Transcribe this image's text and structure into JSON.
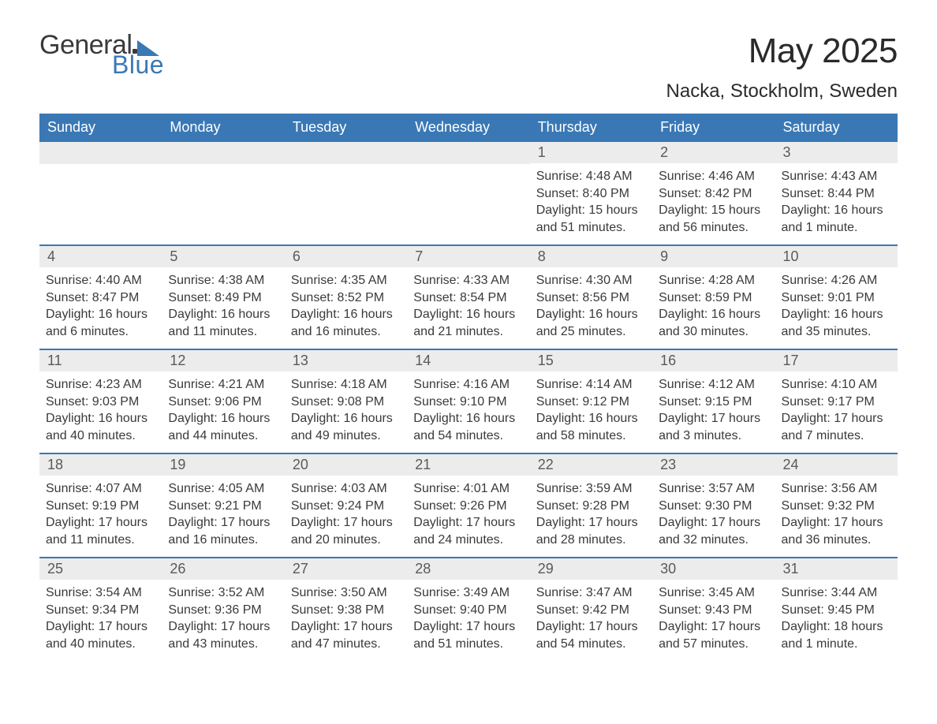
{
  "brand": {
    "word1": "General",
    "word2": "Blue",
    "accent_color": "#3a78b5",
    "text_color": "#3a3a3a"
  },
  "title": "May 2025",
  "location": "Nacka, Stockholm, Sweden",
  "colors": {
    "header_bg": "#3a78b5",
    "header_text": "#ffffff",
    "daynum_bg": "#ececec",
    "body_text": "#3a3a3a",
    "divider": "#3a78b5",
    "page_bg": "#ffffff"
  },
  "weekdays": [
    "Sunday",
    "Monday",
    "Tuesday",
    "Wednesday",
    "Thursday",
    "Friday",
    "Saturday"
  ],
  "weeks": [
    [
      {
        "blank": true
      },
      {
        "blank": true
      },
      {
        "blank": true
      },
      {
        "blank": true
      },
      {
        "n": "1",
        "sunrise": "Sunrise: 4:48 AM",
        "sunset": "Sunset: 8:40 PM",
        "d1": "Daylight: 15 hours",
        "d2": "and 51 minutes."
      },
      {
        "n": "2",
        "sunrise": "Sunrise: 4:46 AM",
        "sunset": "Sunset: 8:42 PM",
        "d1": "Daylight: 15 hours",
        "d2": "and 56 minutes."
      },
      {
        "n": "3",
        "sunrise": "Sunrise: 4:43 AM",
        "sunset": "Sunset: 8:44 PM",
        "d1": "Daylight: 16 hours",
        "d2": "and 1 minute."
      }
    ],
    [
      {
        "n": "4",
        "sunrise": "Sunrise: 4:40 AM",
        "sunset": "Sunset: 8:47 PM",
        "d1": "Daylight: 16 hours",
        "d2": "and 6 minutes."
      },
      {
        "n": "5",
        "sunrise": "Sunrise: 4:38 AM",
        "sunset": "Sunset: 8:49 PM",
        "d1": "Daylight: 16 hours",
        "d2": "and 11 minutes."
      },
      {
        "n": "6",
        "sunrise": "Sunrise: 4:35 AM",
        "sunset": "Sunset: 8:52 PM",
        "d1": "Daylight: 16 hours",
        "d2": "and 16 minutes."
      },
      {
        "n": "7",
        "sunrise": "Sunrise: 4:33 AM",
        "sunset": "Sunset: 8:54 PM",
        "d1": "Daylight: 16 hours",
        "d2": "and 21 minutes."
      },
      {
        "n": "8",
        "sunrise": "Sunrise: 4:30 AM",
        "sunset": "Sunset: 8:56 PM",
        "d1": "Daylight: 16 hours",
        "d2": "and 25 minutes."
      },
      {
        "n": "9",
        "sunrise": "Sunrise: 4:28 AM",
        "sunset": "Sunset: 8:59 PM",
        "d1": "Daylight: 16 hours",
        "d2": "and 30 minutes."
      },
      {
        "n": "10",
        "sunrise": "Sunrise: 4:26 AM",
        "sunset": "Sunset: 9:01 PM",
        "d1": "Daylight: 16 hours",
        "d2": "and 35 minutes."
      }
    ],
    [
      {
        "n": "11",
        "sunrise": "Sunrise: 4:23 AM",
        "sunset": "Sunset: 9:03 PM",
        "d1": "Daylight: 16 hours",
        "d2": "and 40 minutes."
      },
      {
        "n": "12",
        "sunrise": "Sunrise: 4:21 AM",
        "sunset": "Sunset: 9:06 PM",
        "d1": "Daylight: 16 hours",
        "d2": "and 44 minutes."
      },
      {
        "n": "13",
        "sunrise": "Sunrise: 4:18 AM",
        "sunset": "Sunset: 9:08 PM",
        "d1": "Daylight: 16 hours",
        "d2": "and 49 minutes."
      },
      {
        "n": "14",
        "sunrise": "Sunrise: 4:16 AM",
        "sunset": "Sunset: 9:10 PM",
        "d1": "Daylight: 16 hours",
        "d2": "and 54 minutes."
      },
      {
        "n": "15",
        "sunrise": "Sunrise: 4:14 AM",
        "sunset": "Sunset: 9:12 PM",
        "d1": "Daylight: 16 hours",
        "d2": "and 58 minutes."
      },
      {
        "n": "16",
        "sunrise": "Sunrise: 4:12 AM",
        "sunset": "Sunset: 9:15 PM",
        "d1": "Daylight: 17 hours",
        "d2": "and 3 minutes."
      },
      {
        "n": "17",
        "sunrise": "Sunrise: 4:10 AM",
        "sunset": "Sunset: 9:17 PM",
        "d1": "Daylight: 17 hours",
        "d2": "and 7 minutes."
      }
    ],
    [
      {
        "n": "18",
        "sunrise": "Sunrise: 4:07 AM",
        "sunset": "Sunset: 9:19 PM",
        "d1": "Daylight: 17 hours",
        "d2": "and 11 minutes."
      },
      {
        "n": "19",
        "sunrise": "Sunrise: 4:05 AM",
        "sunset": "Sunset: 9:21 PM",
        "d1": "Daylight: 17 hours",
        "d2": "and 16 minutes."
      },
      {
        "n": "20",
        "sunrise": "Sunrise: 4:03 AM",
        "sunset": "Sunset: 9:24 PM",
        "d1": "Daylight: 17 hours",
        "d2": "and 20 minutes."
      },
      {
        "n": "21",
        "sunrise": "Sunrise: 4:01 AM",
        "sunset": "Sunset: 9:26 PM",
        "d1": "Daylight: 17 hours",
        "d2": "and 24 minutes."
      },
      {
        "n": "22",
        "sunrise": "Sunrise: 3:59 AM",
        "sunset": "Sunset: 9:28 PM",
        "d1": "Daylight: 17 hours",
        "d2": "and 28 minutes."
      },
      {
        "n": "23",
        "sunrise": "Sunrise: 3:57 AM",
        "sunset": "Sunset: 9:30 PM",
        "d1": "Daylight: 17 hours",
        "d2": "and 32 minutes."
      },
      {
        "n": "24",
        "sunrise": "Sunrise: 3:56 AM",
        "sunset": "Sunset: 9:32 PM",
        "d1": "Daylight: 17 hours",
        "d2": "and 36 minutes."
      }
    ],
    [
      {
        "n": "25",
        "sunrise": "Sunrise: 3:54 AM",
        "sunset": "Sunset: 9:34 PM",
        "d1": "Daylight: 17 hours",
        "d2": "and 40 minutes."
      },
      {
        "n": "26",
        "sunrise": "Sunrise: 3:52 AM",
        "sunset": "Sunset: 9:36 PM",
        "d1": "Daylight: 17 hours",
        "d2": "and 43 minutes."
      },
      {
        "n": "27",
        "sunrise": "Sunrise: 3:50 AM",
        "sunset": "Sunset: 9:38 PM",
        "d1": "Daylight: 17 hours",
        "d2": "and 47 minutes."
      },
      {
        "n": "28",
        "sunrise": "Sunrise: 3:49 AM",
        "sunset": "Sunset: 9:40 PM",
        "d1": "Daylight: 17 hours",
        "d2": "and 51 minutes."
      },
      {
        "n": "29",
        "sunrise": "Sunrise: 3:47 AM",
        "sunset": "Sunset: 9:42 PM",
        "d1": "Daylight: 17 hours",
        "d2": "and 54 minutes."
      },
      {
        "n": "30",
        "sunrise": "Sunrise: 3:45 AM",
        "sunset": "Sunset: 9:43 PM",
        "d1": "Daylight: 17 hours",
        "d2": "and 57 minutes."
      },
      {
        "n": "31",
        "sunrise": "Sunrise: 3:44 AM",
        "sunset": "Sunset: 9:45 PM",
        "d1": "Daylight: 18 hours",
        "d2": "and 1 minute."
      }
    ]
  ]
}
